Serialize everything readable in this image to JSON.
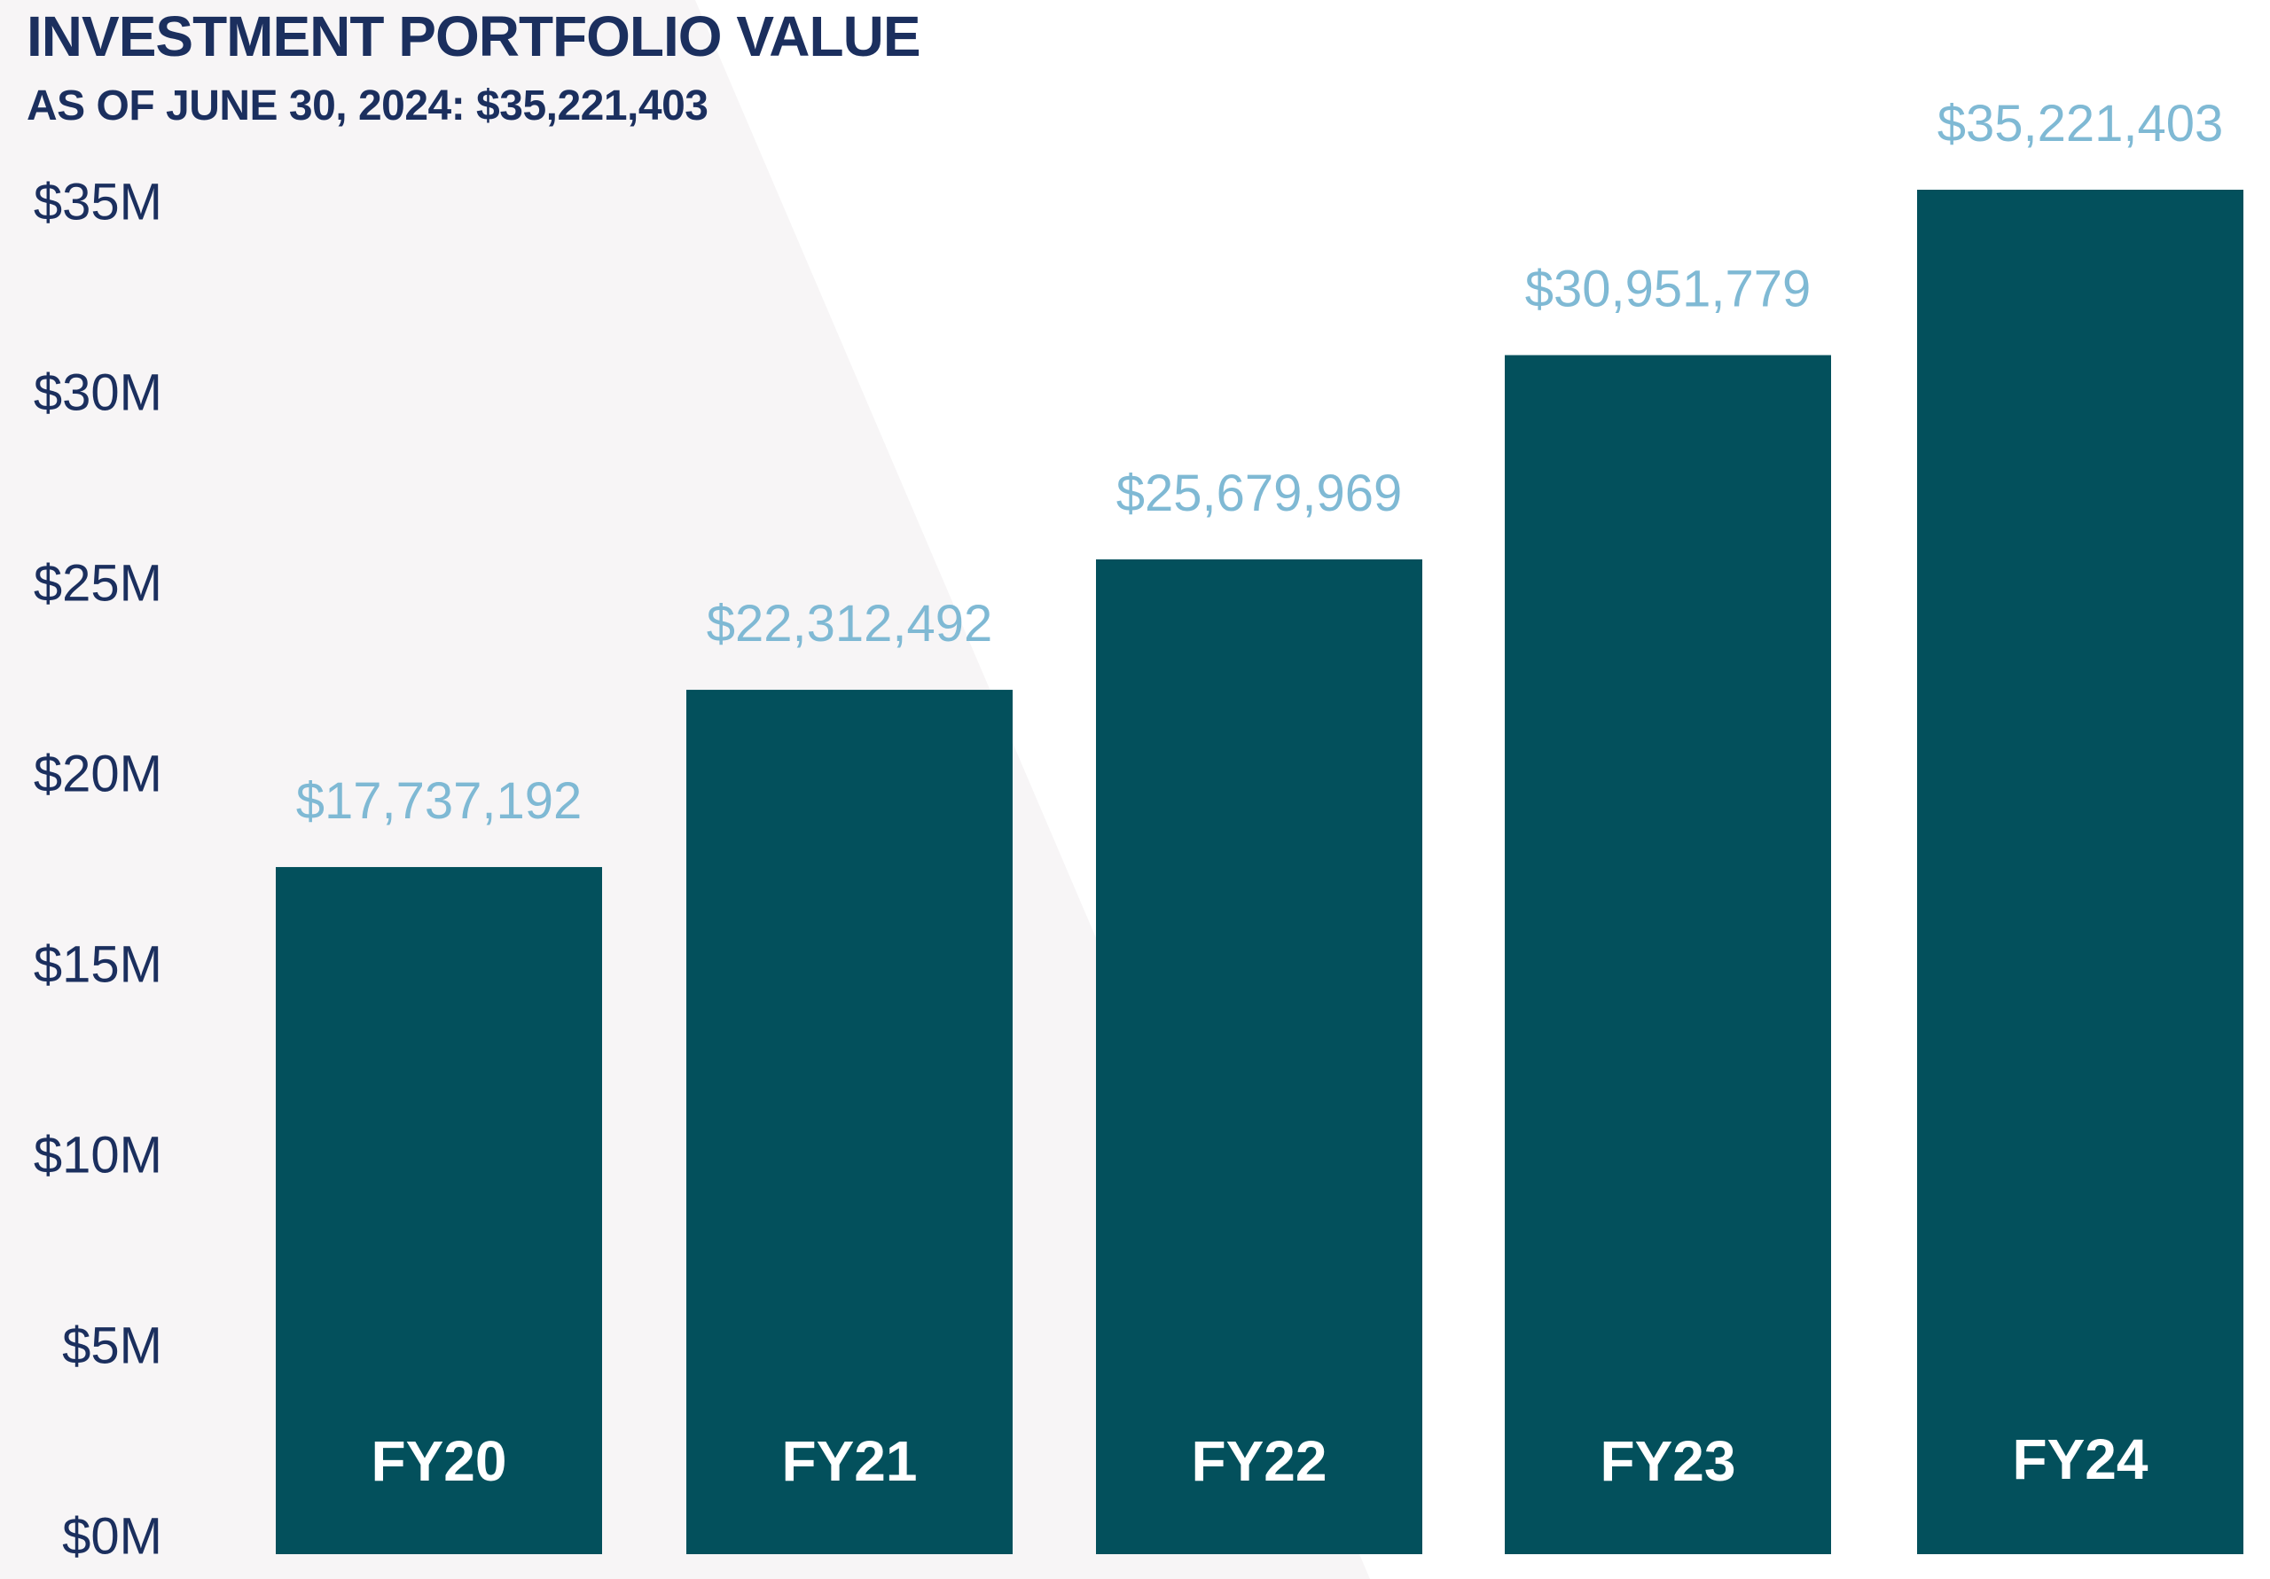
{
  "header": {
    "title": "INVESTMENT PORTFOLIO VALUE",
    "subtitle": "AS OF JUNE 30, 2024: $35,221,403"
  },
  "colors": {
    "bar": "#03505c",
    "value_label": "#7fb9d4",
    "text": "#1b2f5e",
    "background_shape": "#f7f5f6",
    "background": "#ffffff"
  },
  "chart_data": {
    "type": "bar",
    "title": "INVESTMENT PORTFOLIO VALUE",
    "subtitle": "AS OF JUNE 30, 2024: $35,221,403",
    "xlabel": "",
    "ylabel": "",
    "categories": [
      "FY20",
      "FY21",
      "FY22",
      "FY23",
      "FY24"
    ],
    "values": [
      17737192,
      22312492,
      25679969,
      30951779,
      35221403
    ],
    "value_labels": [
      "$17,737,192",
      "$22,312,492",
      "$25,679,969",
      "$30,951,779",
      "$35,221,403"
    ],
    "ylim": [
      0,
      35000000
    ],
    "yticks": [
      0,
      5000000,
      10000000,
      15000000,
      20000000,
      25000000,
      30000000,
      35000000
    ],
    "ytick_labels": [
      "$0M",
      "$5M",
      "$10M",
      "$15M",
      "$20M",
      "$25M",
      "$30M",
      "$35M"
    ],
    "category_labels_position": "inside-bottom",
    "grid": false,
    "legend": "none"
  }
}
